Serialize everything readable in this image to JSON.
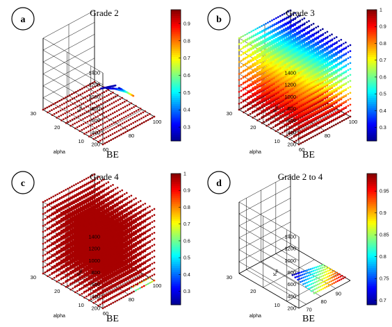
{
  "colors": {
    "jet": [
      "#00008f",
      "#0000ff",
      "#0080ff",
      "#00ffff",
      "#80ff80",
      "#ffff00",
      "#ff8000",
      "#ff0000",
      "#800000"
    ],
    "axis": "#000000",
    "background": "#ffffff"
  },
  "chart_data": [
    {
      "type": "scatter",
      "panel_letter": "a",
      "title": "Grade 2",
      "xlabel": "BE",
      "ylabel": "alpha",
      "zlabel_main": "K",
      "zlabel_sub": "br",
      "x_ticks": [
        "60",
        "80",
        "100"
      ],
      "y_ticks": [
        "10",
        "20",
        "30"
      ],
      "z_ticks": [
        "200",
        "400",
        "600",
        "800",
        "1000",
        "1200",
        "1400"
      ],
      "colorbar_ticks": [
        "0.3",
        "0.4",
        "0.5",
        "0.6",
        "0.7",
        "0.8",
        "0.9"
      ],
      "colorbar_range": [
        0.22,
        0.98
      ],
      "xlim": [
        60,
        100
      ],
      "ylim": [
        5,
        30
      ],
      "zlim": [
        200,
        1400
      ],
      "layers": [
        200
      ],
      "pattern": "flat-red"
    },
    {
      "type": "scatter",
      "panel_letter": "b",
      "title": "Grade 3",
      "xlabel": "BE",
      "ylabel": "alpha",
      "zlabel_main": "K",
      "zlabel_sub": "br",
      "x_ticks": [
        "60",
        "80",
        "100"
      ],
      "y_ticks": [
        "10",
        "20",
        "30"
      ],
      "z_ticks": [
        "200",
        "400",
        "600",
        "800",
        "1000",
        "1200",
        "1400"
      ],
      "colorbar_ticks": [
        "0.3",
        "0.4",
        "0.5",
        "0.6",
        "0.7",
        "0.8",
        "0.9",
        "1"
      ],
      "colorbar_range": [
        0.22,
        1.0
      ],
      "xlim": [
        60,
        100
      ],
      "ylim": [
        5,
        30
      ],
      "zlim": [
        200,
        1400
      ],
      "layers": [
        200,
        300,
        400,
        500,
        600,
        700,
        800,
        900,
        1000,
        1100,
        1200,
        1300,
        1400
      ],
      "pattern": "graded"
    },
    {
      "type": "scatter",
      "panel_letter": "c",
      "title": "Grade 4",
      "xlabel": "BE",
      "ylabel": "alpha",
      "zlabel_main": "K",
      "zlabel_sub": "br",
      "x_ticks": [
        "60",
        "80",
        "100"
      ],
      "y_ticks": [
        "10",
        "20",
        "30"
      ],
      "z_ticks": [
        "200",
        "400",
        "600",
        "800",
        "1000",
        "1200",
        "1400"
      ],
      "colorbar_ticks": [
        "0.3",
        "0.4",
        "0.5",
        "0.6",
        "0.7",
        "0.8",
        "0.9",
        "1"
      ],
      "colorbar_range": [
        0.22,
        1.0
      ],
      "xlim": [
        60,
        100
      ],
      "ylim": [
        5,
        30
      ],
      "zlim": [
        200,
        1400
      ],
      "layers": [
        200,
        300,
        400,
        500,
        600,
        700,
        800,
        900,
        1000,
        1100,
        1200,
        1300,
        1400
      ],
      "pattern": "solid-red"
    },
    {
      "type": "scatter",
      "panel_letter": "d",
      "title": "Grade 2 to 4",
      "xlabel": "BE",
      "ylabel": "alpha",
      "zlabel_main": "K",
      "zlabel_sub": "br",
      "x_ticks": [
        "70",
        "80",
        "90"
      ],
      "y_ticks": [
        "10",
        "20",
        "30"
      ],
      "z_ticks": [
        "200",
        "400",
        "600",
        "800",
        "1000",
        "1200",
        "1400"
      ],
      "colorbar_ticks": [
        "0.7",
        "0.75",
        "0.8",
        "0.85",
        "0.9",
        "0.95"
      ],
      "colorbar_range": [
        0.69,
        0.99
      ],
      "xlim": [
        65,
        100
      ],
      "ylim": [
        5,
        30
      ],
      "zlim": [
        200,
        1400
      ],
      "layers": [
        200
      ],
      "pattern": "band"
    }
  ]
}
